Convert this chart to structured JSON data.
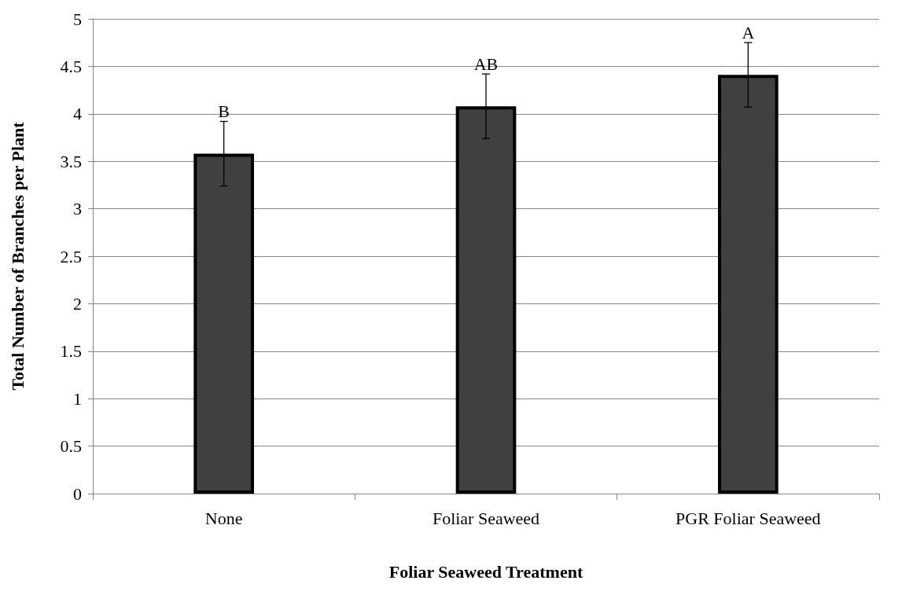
{
  "chart_data": {
    "type": "bar",
    "xlabel": "Foliar Seaweed Treatment",
    "ylabel": "Total Number of Branches per Plant",
    "categories": [
      "None",
      "Foliar Seaweed",
      "PGR Foliar Seaweed"
    ],
    "values": [
      3.58,
      4.08,
      4.41
    ],
    "color": "#404040",
    "errors": [
      0.34,
      0.34,
      0.34
    ],
    "ylim": [
      0,
      5
    ],
    "yticks": [
      0,
      0.5,
      1,
      1.5,
      2,
      2.5,
      3,
      3.5,
      4,
      4.5,
      5
    ],
    "grid": "y",
    "annotations": [
      {
        "text": "B",
        "x": "None",
        "y": 3.92
      },
      {
        "text": "AB",
        "x": "Foliar Seaweed",
        "y": 4.42
      },
      {
        "text": "A",
        "x": "PGR Foliar Seaweed",
        "y": 4.75
      }
    ]
  }
}
